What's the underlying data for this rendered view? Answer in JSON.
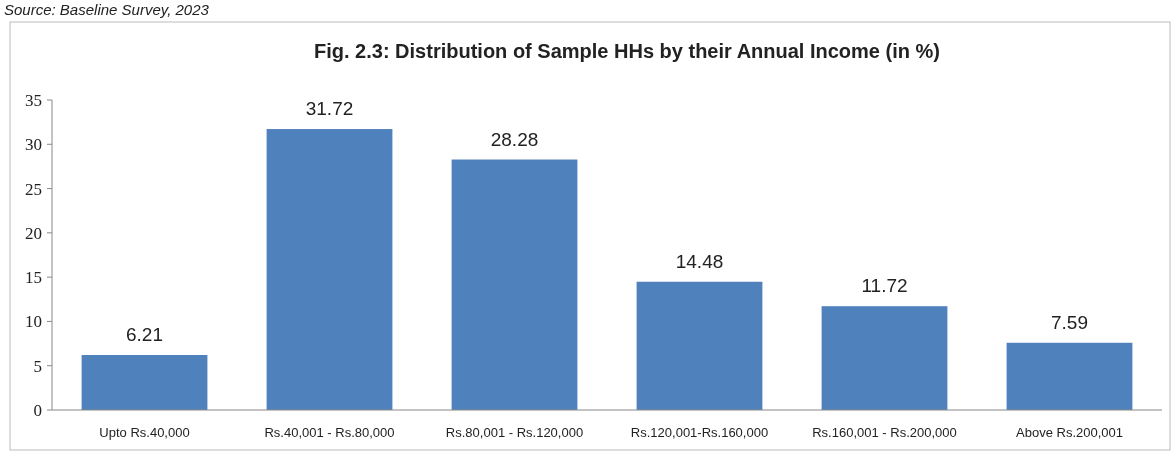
{
  "chart_data": {
    "type": "bar",
    "title": "Fig. 2.3: Distribution of Sample HHs by their Annual Income (in %)",
    "annotations": [
      "Source: Baseline Survey, 2023"
    ],
    "categories": [
      "Upto Rs.40,000",
      "Rs.40,001 - Rs.80,000",
      "Rs.80,001 - Rs.120,000",
      "Rs.120,001-Rs.160,000",
      "Rs.160,001 - Rs.200,000",
      "Above Rs.200,001"
    ],
    "values": [
      6.21,
      31.72,
      28.28,
      14.48,
      11.72,
      7.59
    ],
    "color": "#4f81bd",
    "ylim": [
      0,
      35
    ],
    "yticks": [
      0,
      5,
      10,
      15,
      20,
      25,
      30,
      35
    ],
    "data_labels": true,
    "grid": false
  }
}
